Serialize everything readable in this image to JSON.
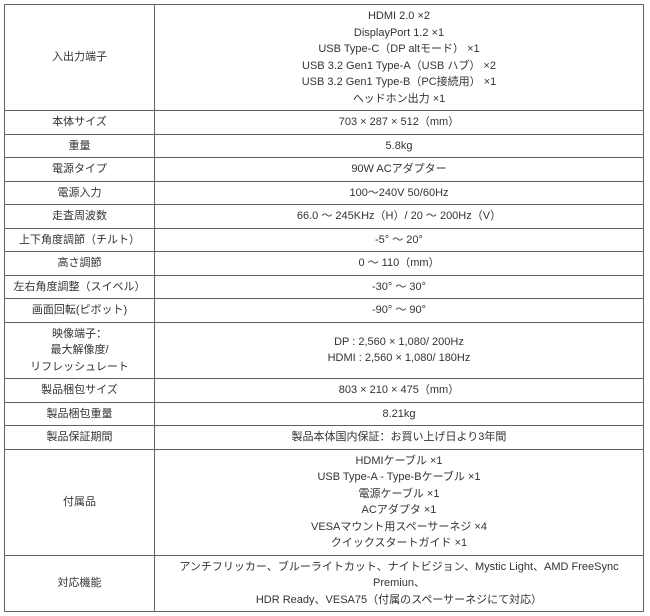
{
  "table": {
    "border_color": "#606060",
    "text_color": "#333333",
    "bg_color": "#ffffff",
    "font_size": 11,
    "rows": [
      {
        "label": "入出力端子",
        "value_lines": [
          "HDMI 2.0 ×2",
          "DisplayPort 1.2 ×1",
          "USB Type-C（DP altモード） ×1",
          "USB 3.2 Gen1 Type-A（USB ハブ） ×2",
          "USB 3.2 Gen1 Type-B（PC接続用） ×1",
          "ヘッドホン出力 ×1"
        ]
      },
      {
        "label": "本体サイズ",
        "value_lines": [
          "703 × 287 × 512（mm）"
        ]
      },
      {
        "label": "重量",
        "value_lines": [
          "5.8kg"
        ]
      },
      {
        "label": "電源タイプ",
        "value_lines": [
          "90W ACアダプター"
        ]
      },
      {
        "label": "電源入力",
        "value_lines": [
          "100～240V  50/60Hz"
        ]
      },
      {
        "label": "走査周波数",
        "value_lines": [
          "66.0 ～ 245KHz（H）/ 20 ～ 200Hz（V）"
        ]
      },
      {
        "label": "上下角度調節（チルト）",
        "value_lines": [
          "-5° ～ 20°"
        ]
      },
      {
        "label": "高さ調節",
        "value_lines": [
          "0 ～ 110（mm）"
        ]
      },
      {
        "label": "左右角度調整（スイベル）",
        "value_lines": [
          "-30° ～ 30°"
        ]
      },
      {
        "label": "画面回転(ピボット)",
        "value_lines": [
          "-90° ～ 90°"
        ]
      },
      {
        "label_lines": [
          "映像端子：",
          "最大解像度/",
          "リフレッシュレート"
        ],
        "value_lines": [
          "DP : 2,560 × 1,080/ 200Hz",
          "HDMI : 2,560 × 1,080/ 180Hz"
        ]
      },
      {
        "label": "製品梱包サイズ",
        "value_lines": [
          "803 × 210 × 475（mm）"
        ]
      },
      {
        "label": "製品梱包重量",
        "value_lines": [
          "8.21kg"
        ]
      },
      {
        "label": "製品保証期間",
        "value_lines": [
          "製品本体国内保証：お買い上げ日より3年間"
        ]
      },
      {
        "label": "付属品",
        "value_lines": [
          "HDMIケーブル ×1",
          "USB Type-A - Type-Bケーブル ×1",
          "電源ケーブル ×1",
          "ACアダプタ ×1",
          "VESAマウント用スペーサーネジ ×4",
          "クイックスタートガイド ×1"
        ]
      },
      {
        "label": "対応機能",
        "value_lines": [
          "アンチフリッカー、ブルーライトカット、ナイトビジョン、Mystic Light、AMD FreeSync Premiun、",
          "HDR Ready、VESA75（付属のスペーサーネジにて対応）"
        ]
      }
    ]
  }
}
